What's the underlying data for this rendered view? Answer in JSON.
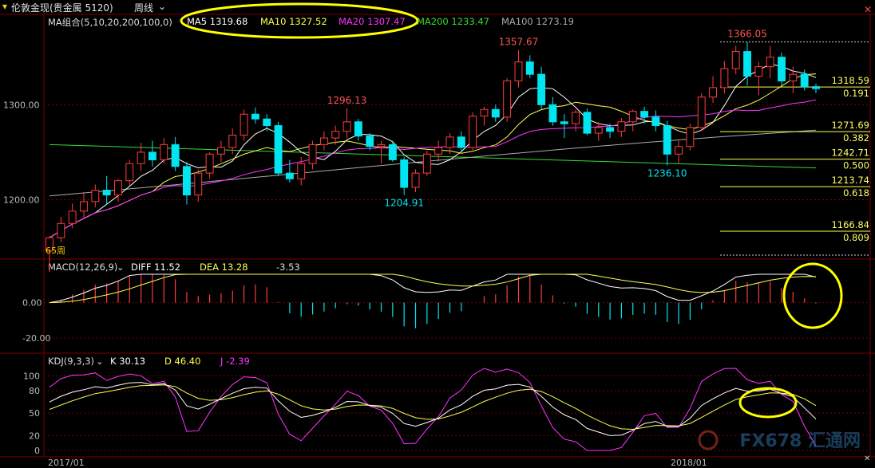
{
  "header": {
    "title": "伦敦金现(贵金属 5120)",
    "period": "周线"
  },
  "ma_legend": {
    "label": "MA组合(5,10,20,200,100,0)",
    "ma5": "MA5 1319.68",
    "ma10": "MA10 1327.52",
    "ma20": "MA20 1307.47",
    "ma200": "MA200 1233.47",
    "ma100": "MA100 1273.19"
  },
  "macd_legend": {
    "label": "MACD(12,26,9)",
    "diff": "DIFF  11.52",
    "dea": "DEA  13.28",
    "macd": "-3.53"
  },
  "kdj_legend": {
    "label": "KDJ(9,3,3)",
    "k": "K  30.13",
    "d": "D  46.40",
    "j": "J  -2.39"
  },
  "watermark": "FX678 汇通网",
  "colors": {
    "up": "#ff3b3b",
    "down": "#00e5f0",
    "ma5": "#ffffff",
    "ma10": "#ffff4d",
    "ma20": "#ff33ff",
    "ma200": "#33dd33",
    "ma100": "#aaaaaa",
    "highlight": "#ffff00"
  },
  "chart_data": {
    "type": "candlestick",
    "timeframe": "weekly",
    "x_ticks": [
      "2017/01",
      "2018/01"
    ],
    "y_axis": {
      "range": [
        1140,
        1380
      ],
      "ticks": [
        1200,
        1300
      ],
      "tick_labels": [
        "1200.00",
        "1300.00"
      ]
    },
    "candles": [
      {
        "o": 1146,
        "h": 1162,
        "l": 1124,
        "c": 1160
      },
      {
        "o": 1160,
        "h": 1182,
        "l": 1155,
        "c": 1175
      },
      {
        "o": 1175,
        "h": 1196,
        "l": 1170,
        "c": 1188
      },
      {
        "o": 1188,
        "h": 1208,
        "l": 1180,
        "c": 1198
      },
      {
        "o": 1198,
        "h": 1216,
        "l": 1192,
        "c": 1210
      },
      {
        "o": 1210,
        "h": 1225,
        "l": 1195,
        "c": 1205
      },
      {
        "o": 1205,
        "h": 1222,
        "l": 1198,
        "c": 1220
      },
      {
        "o": 1220,
        "h": 1242,
        "l": 1215,
        "c": 1238
      },
      {
        "o": 1238,
        "h": 1260,
        "l": 1230,
        "c": 1250
      },
      {
        "o": 1250,
        "h": 1262,
        "l": 1235,
        "c": 1242
      },
      {
        "o": 1242,
        "h": 1265,
        "l": 1238,
        "c": 1258
      },
      {
        "o": 1258,
        "h": 1266,
        "l": 1230,
        "c": 1235
      },
      {
        "o": 1235,
        "h": 1240,
        "l": 1195,
        "c": 1205
      },
      {
        "o": 1205,
        "h": 1232,
        "l": 1198,
        "c": 1228
      },
      {
        "o": 1228,
        "h": 1250,
        "l": 1222,
        "c": 1248
      },
      {
        "o": 1248,
        "h": 1262,
        "l": 1240,
        "c": 1255
      },
      {
        "o": 1255,
        "h": 1275,
        "l": 1248,
        "c": 1268
      },
      {
        "o": 1268,
        "h": 1295,
        "l": 1262,
        "c": 1290
      },
      {
        "o": 1290,
        "h": 1297,
        "l": 1280,
        "c": 1285
      },
      {
        "o": 1285,
        "h": 1290,
        "l": 1272,
        "c": 1278
      },
      {
        "o": 1278,
        "h": 1282,
        "l": 1225,
        "c": 1228
      },
      {
        "o": 1228,
        "h": 1242,
        "l": 1218,
        "c": 1222
      },
      {
        "o": 1222,
        "h": 1245,
        "l": 1215,
        "c": 1238
      },
      {
        "o": 1238,
        "h": 1262,
        "l": 1232,
        "c": 1258
      },
      {
        "o": 1258,
        "h": 1272,
        "l": 1252,
        "c": 1265
      },
      {
        "o": 1265,
        "h": 1278,
        "l": 1258,
        "c": 1272
      },
      {
        "o": 1272,
        "h": 1296.13,
        "l": 1265,
        "c": 1282
      },
      {
        "o": 1282,
        "h": 1285,
        "l": 1262,
        "c": 1267
      },
      {
        "o": 1267,
        "h": 1270,
        "l": 1252,
        "c": 1256
      },
      {
        "o": 1256,
        "h": 1262,
        "l": 1238,
        "c": 1258
      },
      {
        "o": 1258,
        "h": 1262,
        "l": 1240,
        "c": 1242
      },
      {
        "o": 1242,
        "h": 1245,
        "l": 1204.91,
        "c": 1213
      },
      {
        "o": 1213,
        "h": 1232,
        "l": 1208,
        "c": 1228
      },
      {
        "o": 1228,
        "h": 1252,
        "l": 1225,
        "c": 1248
      },
      {
        "o": 1248,
        "h": 1262,
        "l": 1240,
        "c": 1255
      },
      {
        "o": 1255,
        "h": 1270,
        "l": 1248,
        "c": 1266
      },
      {
        "o": 1266,
        "h": 1272,
        "l": 1250,
        "c": 1255
      },
      {
        "o": 1255,
        "h": 1292,
        "l": 1252,
        "c": 1288
      },
      {
        "o": 1288,
        "h": 1298,
        "l": 1278,
        "c": 1295
      },
      {
        "o": 1295,
        "h": 1300,
        "l": 1282,
        "c": 1287
      },
      {
        "o": 1287,
        "h": 1328,
        "l": 1282,
        "c": 1325
      },
      {
        "o": 1325,
        "h": 1357.67,
        "l": 1318,
        "c": 1345
      },
      {
        "o": 1345,
        "h": 1352,
        "l": 1328,
        "c": 1332
      },
      {
        "o": 1332,
        "h": 1340,
        "l": 1295,
        "c": 1300
      },
      {
        "o": 1300,
        "h": 1308,
        "l": 1278,
        "c": 1282
      },
      {
        "o": 1282,
        "h": 1290,
        "l": 1265,
        "c": 1280
      },
      {
        "o": 1280,
        "h": 1295,
        "l": 1272,
        "c": 1292
      },
      {
        "o": 1292,
        "h": 1296,
        "l": 1268,
        "c": 1270
      },
      {
        "o": 1270,
        "h": 1282,
        "l": 1262,
        "c": 1276
      },
      {
        "o": 1276,
        "h": 1280,
        "l": 1265,
        "c": 1272
      },
      {
        "o": 1272,
        "h": 1286,
        "l": 1266,
        "c": 1282
      },
      {
        "o": 1282,
        "h": 1295,
        "l": 1272,
        "c": 1293
      },
      {
        "o": 1293,
        "h": 1298,
        "l": 1280,
        "c": 1287
      },
      {
        "o": 1287,
        "h": 1294,
        "l": 1272,
        "c": 1278
      },
      {
        "o": 1278,
        "h": 1283,
        "l": 1236.1,
        "c": 1248
      },
      {
        "o": 1248,
        "h": 1262,
        "l": 1238,
        "c": 1256
      },
      {
        "o": 1256,
        "h": 1280,
        "l": 1252,
        "c": 1276
      },
      {
        "o": 1276,
        "h": 1312,
        "l": 1272,
        "c": 1308
      },
      {
        "o": 1308,
        "h": 1330,
        "l": 1302,
        "c": 1318
      },
      {
        "o": 1318,
        "h": 1346,
        "l": 1312,
        "c": 1338
      },
      {
        "o": 1338,
        "h": 1362,
        "l": 1332,
        "c": 1356
      },
      {
        "o": 1356,
        "h": 1366.05,
        "l": 1320,
        "c": 1330
      },
      {
        "o": 1330,
        "h": 1345,
        "l": 1310,
        "c": 1340
      },
      {
        "o": 1340,
        "h": 1362,
        "l": 1328,
        "c": 1350
      },
      {
        "o": 1350,
        "h": 1355,
        "l": 1320,
        "c": 1325
      },
      {
        "o": 1325,
        "h": 1340,
        "l": 1312,
        "c": 1332
      },
      {
        "o": 1332,
        "h": 1337,
        "l": 1315,
        "c": 1319
      },
      {
        "o": 1319,
        "h": 1322,
        "l": 1312,
        "c": 1317
      }
    ],
    "ma_lines": [
      {
        "name": "MA5",
        "color": "#ffffff",
        "period": 5
      },
      {
        "name": "MA10",
        "color": "#ffff4d",
        "period": 10
      },
      {
        "name": "MA20",
        "color": "#ff33ff",
        "period": 20
      }
    ],
    "ma200": {
      "name": "MA200",
      "from": 1258,
      "to": 1233.47,
      "color": "#33dd33"
    },
    "ma100": {
      "name": "MA100",
      "from": 1204,
      "to": 1273.19,
      "color": "#aaaaaa"
    },
    "price_labels": [
      {
        "index": 26,
        "value": "1296.13",
        "at": "high",
        "color": "#ff5555"
      },
      {
        "index": 31,
        "value": "1204.91",
        "at": "low",
        "color": "#00e5f0"
      },
      {
        "index": 41,
        "value": "1357.67",
        "at": "high",
        "color": "#ff5555"
      },
      {
        "index": 54,
        "value": "1236.10",
        "at": "low",
        "color": "#00e5f0"
      },
      {
        "index": 61,
        "value": "1366.05",
        "at": "high",
        "color": "#ff5555"
      }
    ],
    "fib_levels": [
      {
        "ratio": "0.191",
        "price": "1318.59",
        "y": 1318.59
      },
      {
        "ratio": "0.382",
        "price": "1271.69",
        "y": 1271.69
      },
      {
        "ratio": "0.500",
        "price": "1242.71",
        "y": 1242.71
      },
      {
        "ratio": "0.618",
        "price": "1213.74",
        "y": 1213.74
      },
      {
        "ratio": "0.809",
        "price": "1166.84",
        "y": 1166.84
      }
    ],
    "fib_top": 1366.05,
    "left_label": "65周",
    "macd": {
      "y_ticks": [
        0,
        -20
      ],
      "tick_labels": [
        "0.00",
        "-20.00"
      ],
      "range": [
        -28,
        16
      ]
    },
    "kdj": {
      "y_ticks": [
        0,
        20,
        50,
        80,
        100
      ],
      "tick_labels": [
        "0",
        "20",
        "50",
        "80",
        "100"
      ],
      "range": [
        0,
        110
      ]
    }
  }
}
